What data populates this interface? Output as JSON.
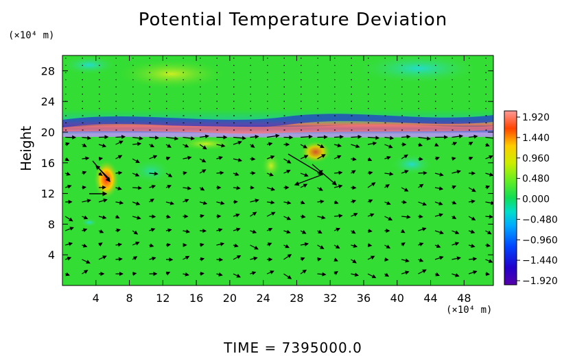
{
  "chart_data": {
    "type": "heatmap",
    "title": "Potential Temperature Deviation",
    "ylabel": "Height",
    "x_unit": "(×10⁴ m)",
    "y_unit": "(×10⁴ m)",
    "x_ticks": [
      "4",
      "8",
      "12",
      "16",
      "20",
      "24",
      "28",
      "32",
      "36",
      "40",
      "44",
      "48"
    ],
    "y_ticks": [
      "4",
      "8",
      "12",
      "16",
      "20",
      "24",
      "28"
    ],
    "xlim": [
      0,
      51.5
    ],
    "ylim": [
      0,
      30
    ],
    "colorbar_labels": [
      "1.920",
      "1.440",
      "0.960",
      "0.480",
      "0.000",
      "−0.480",
      "−0.960",
      "−1.440",
      "−1.920"
    ],
    "colorbar_range": [
      -1.92,
      1.92
    ],
    "overlay": "velocity vectors",
    "colors": {
      "background_field": "#33dd33",
      "frame": "#000000"
    }
  },
  "footer": "TIME  =  7395000.0"
}
